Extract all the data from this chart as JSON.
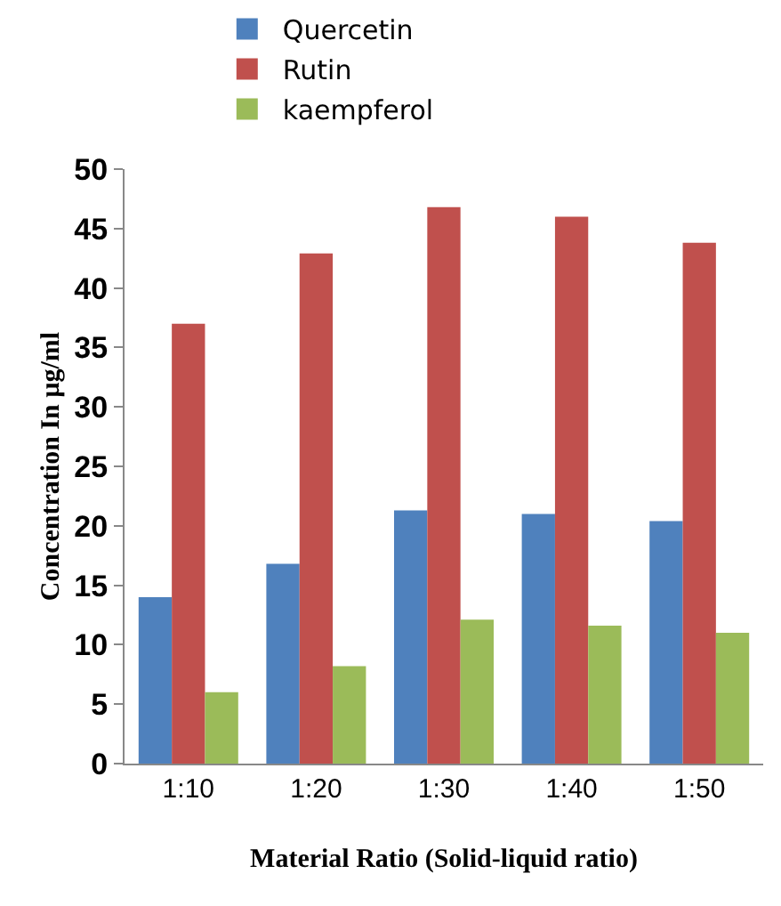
{
  "chart_data": {
    "type": "bar",
    "xlabel": "Material Ratio (Solid-liquid ratio)",
    "ylabel": "Concentration In µg/ml",
    "categories": [
      "1:10",
      "1:20",
      "1:30",
      "1:40",
      "1:50"
    ],
    "series": [
      {
        "name": "Quercetin",
        "color": "#4f81bd",
        "values": [
          14,
          16.8,
          21.3,
          21,
          20.4
        ]
      },
      {
        "name": "Rutin",
        "color": "#c0504d",
        "values": [
          37,
          42.9,
          46.8,
          46,
          43.8
        ]
      },
      {
        "name": "kaempferol",
        "color": "#9bbb59",
        "values": [
          6,
          8.2,
          12.1,
          11.6,
          11.0
        ]
      }
    ],
    "ylim": [
      0,
      50
    ],
    "yticks": [
      0,
      5,
      10,
      15,
      20,
      25,
      30,
      35,
      40,
      45,
      50
    ],
    "grid": false,
    "legend": "top"
  }
}
